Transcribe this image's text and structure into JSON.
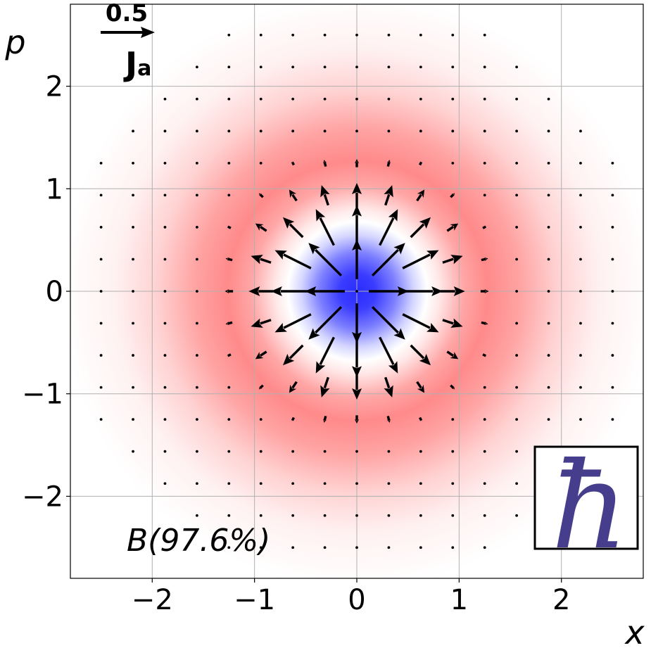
{
  "chart_data": {
    "type": "quiver",
    "xlabel": "x",
    "ylabel": "p",
    "xlim": [
      -2.8,
      2.8
    ],
    "ylim": [
      -2.8,
      2.8
    ],
    "xticks": [
      -2,
      -1,
      0,
      1,
      2
    ],
    "yticks": [
      -2,
      -1,
      0,
      1,
      2
    ],
    "xtick_labels": [
      "−2",
      "−1",
      "0",
      "1",
      "2"
    ],
    "ytick_labels": [
      "−2",
      "−1",
      "0",
      "1",
      "2"
    ],
    "grid": true,
    "background": {
      "type": "heatmap",
      "description_colors": {
        "negative": "#2a2cff",
        "zero": "#ffffff",
        "positive": "#ff8585"
      },
      "center": [
        0,
        0
      ],
      "node_radius": 0.7,
      "positive_peak_radius": 1.25
    },
    "quiver": {
      "grid_spacing": 0.3125,
      "grid_extent": 2.5,
      "field": "radial",
      "arrow_peak_radius": 0.75
    },
    "annotation": "B(97.6%)",
    "quiver_key": {
      "value": "0.5",
      "label": "J",
      "subscript": "a"
    },
    "inset_symbol": "ħ",
    "inset_symbol_color": "#463e8c"
  }
}
